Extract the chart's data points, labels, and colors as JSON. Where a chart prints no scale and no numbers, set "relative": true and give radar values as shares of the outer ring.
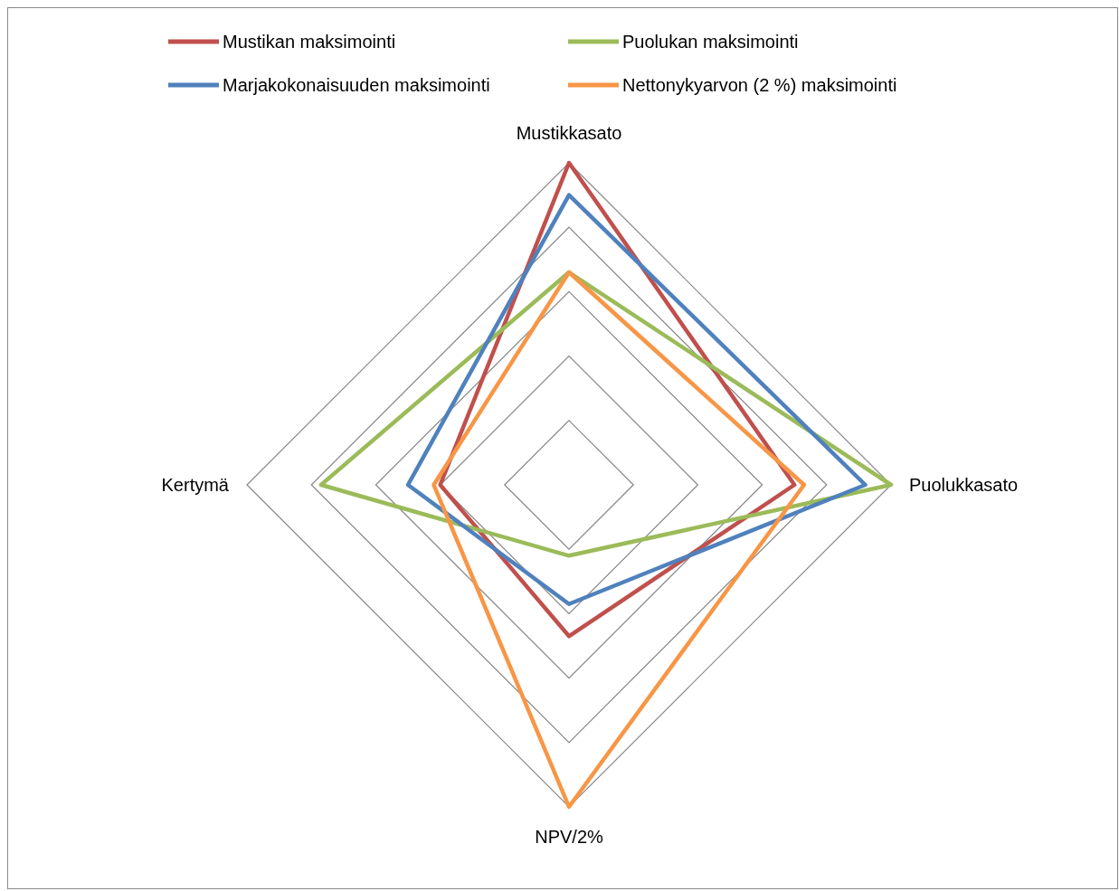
{
  "chart_data": {
    "type": "radar",
    "relative": true,
    "grid": true,
    "legend": "top",
    "line_style": "solid",
    "marker": "none",
    "categories": [
      "Mustikkasato",
      "Puolukkasato",
      "NPV/2%",
      "Kertymä"
    ],
    "series": [
      {
        "name": "Mustikan maksimointi",
        "color": "#c0504d",
        "values": [
          1.0,
          0.7,
          0.47,
          0.4
        ]
      },
      {
        "name": "Puolukan maksimointi",
        "color": "#9bbb59",
        "values": [
          0.66,
          1.0,
          0.22,
          0.77
        ]
      },
      {
        "name": "Marjakokonaisuuden maksimointi",
        "color": "#4f81bd",
        "values": [
          0.9,
          0.92,
          0.37,
          0.5
        ]
      },
      {
        "name": "Nettonykyarvon (2 %) maksimointi",
        "color": "#f79646",
        "values": [
          0.66,
          0.73,
          1.0,
          0.42
        ]
      }
    ]
  }
}
